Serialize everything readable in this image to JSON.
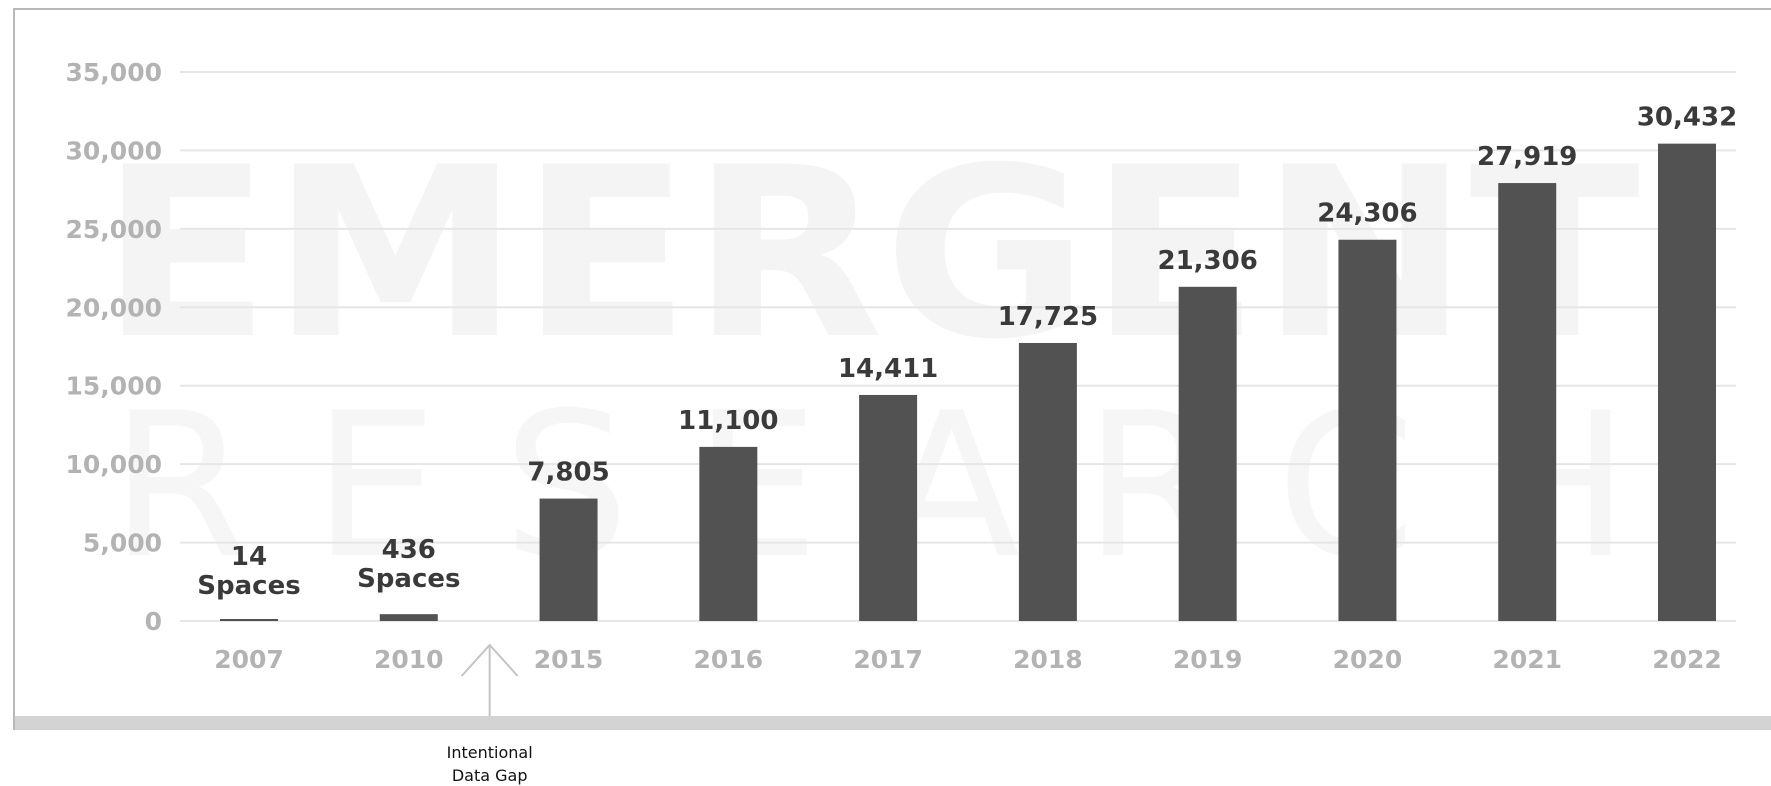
{
  "watermark": {
    "line1": "EMERGENT",
    "line2": "RESEARCH"
  },
  "annotation": {
    "line1": "Intentional",
    "line2": "Data Gap"
  },
  "colors": {
    "bar": "#525252",
    "grid": "#e6e6e6",
    "tick": "#b3b3b3",
    "label": "#3a3a3a"
  },
  "chart_data": {
    "type": "bar",
    "title": "",
    "xlabel": "",
    "ylabel": "",
    "categories": [
      "2007",
      "2010",
      "2015",
      "2016",
      "2017",
      "2018",
      "2019",
      "2020",
      "2021",
      "2022"
    ],
    "values": [
      14,
      436,
      7805,
      11100,
      14411,
      17725,
      21306,
      24306,
      27919,
      30432
    ],
    "data_labels": [
      [
        "14",
        "Spaces"
      ],
      [
        "436",
        "Spaces"
      ],
      [
        "7,805"
      ],
      [
        "11,100"
      ],
      [
        "14,411"
      ],
      [
        "17,725"
      ],
      [
        "21,306"
      ],
      [
        "24,306"
      ],
      [
        "27,919"
      ],
      [
        "30,432"
      ]
    ],
    "y_ticks": [
      "0",
      "5,000",
      "10,000",
      "15,000",
      "20,000",
      "25,000",
      "30,000",
      "35,000"
    ],
    "ylim": [
      0,
      35000
    ],
    "grid": true,
    "legend": "none"
  }
}
